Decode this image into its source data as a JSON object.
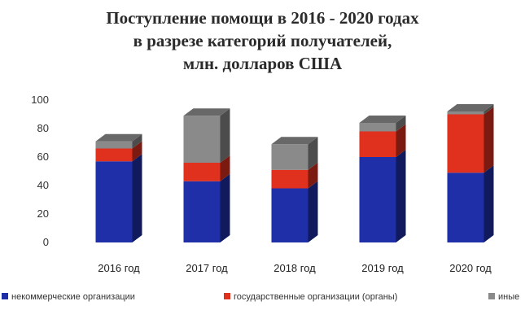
{
  "chart_data": {
    "type": "bar",
    "stacked": true,
    "title_lines": [
      "Поступление помощи  в 2016 - 2020 годах",
      "в разрезе  категорий получателей,",
      "млн. долларов США"
    ],
    "categories": [
      "2016 год",
      "2017 год",
      "2018 год",
      "2019 год",
      "2020 год"
    ],
    "ylim": [
      0,
      100
    ],
    "yticks": [
      0,
      20,
      40,
      60,
      80,
      100
    ],
    "grid": false,
    "legend_position": "bottom",
    "series": [
      {
        "name": "некоммерческие организации",
        "color": "#1f2fa8",
        "values": [
          57,
          43,
          38,
          60,
          49
        ]
      },
      {
        "name": "государственные организации (органы)",
        "color": "#e0301e",
        "values": [
          9,
          13,
          13,
          18,
          41
        ]
      },
      {
        "name": "иные",
        "color": "#8a8a8a",
        "values": [
          5,
          33,
          18,
          6,
          2
        ]
      }
    ]
  }
}
